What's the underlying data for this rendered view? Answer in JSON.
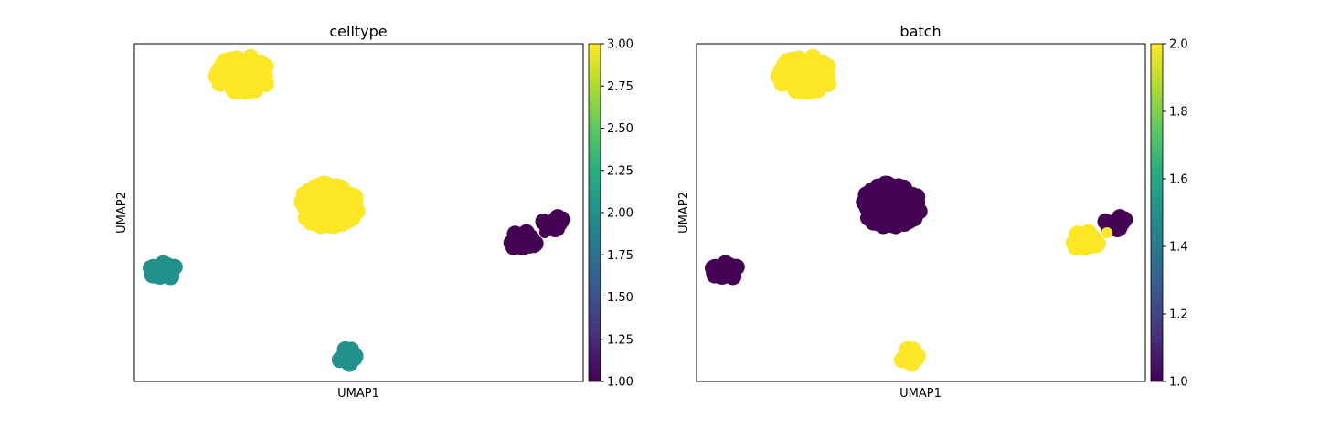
{
  "chart_data": [
    {
      "type": "scatter",
      "title": "celltype",
      "xlabel": "UMAP1",
      "ylabel": "UMAP2",
      "colorbar": {
        "ticks": [
          "1.00",
          "1.25",
          "1.50",
          "1.75",
          "2.00",
          "2.25",
          "2.50",
          "2.75",
          "3.00"
        ],
        "range": [
          1.0,
          3.0
        ],
        "colormap": "viridis"
      },
      "clusters": [
        {
          "label": "top-left cluster",
          "value": 3.0,
          "color": "#fde725"
        },
        {
          "label": "center cluster",
          "value": 3.0,
          "color": "#fde725"
        },
        {
          "label": "right cluster A",
          "value": 1.0,
          "color": "#440154"
        },
        {
          "label": "right cluster B",
          "value": 1.0,
          "color": "#440154"
        },
        {
          "label": "left cluster",
          "value": 2.0,
          "color": "#21918c"
        },
        {
          "label": "bottom cluster",
          "value": 2.0,
          "color": "#21918c"
        }
      ]
    },
    {
      "type": "scatter",
      "title": "batch",
      "xlabel": "UMAP1",
      "ylabel": "UMAP2",
      "colorbar": {
        "ticks": [
          "1.0",
          "1.2",
          "1.4",
          "1.6",
          "1.8",
          "2.0"
        ],
        "range": [
          1.0,
          2.0
        ],
        "colormap": "viridis"
      },
      "clusters": [
        {
          "label": "top-left cluster",
          "value": 2.0,
          "color": "#fde725"
        },
        {
          "label": "center cluster",
          "value": 1.0,
          "color": "#440154"
        },
        {
          "label": "right cluster A",
          "value": 2.0,
          "color": "#fde725"
        },
        {
          "label": "right cluster B",
          "value": 1.0,
          "color": "#440154"
        },
        {
          "label": "left cluster",
          "value": 1.0,
          "color": "#440154"
        },
        {
          "label": "bottom cluster",
          "value": 2.0,
          "color": "#fde725"
        }
      ]
    }
  ]
}
